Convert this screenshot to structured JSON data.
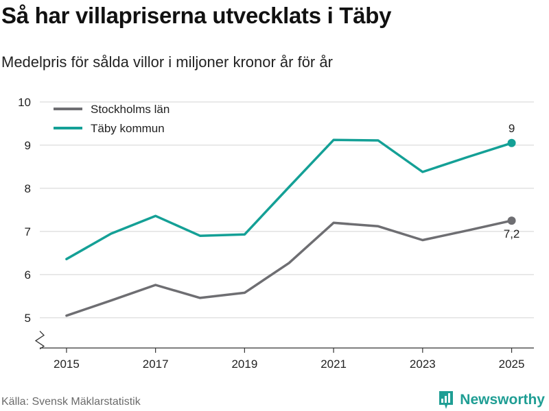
{
  "title": "Så har villapriserna utvecklats i Täby",
  "subtitle": "Medelpris för sålda villor i miljoner kronor år för år",
  "source": "Källa: Svensk Mäklarstatistik",
  "brand": "Newsworthy",
  "colors": {
    "stockholm": "#6e6e72",
    "taby": "#14a096",
    "grid": "#dcdcdc",
    "axis": "#333333",
    "brand": "#1f9e94"
  },
  "chart_data": {
    "type": "line",
    "title": "Så har villapriserna utvecklats i Täby",
    "xlabel": "",
    "ylabel": "",
    "x": [
      2015,
      2016,
      2017,
      2018,
      2019,
      2020,
      2021,
      2022,
      2023,
      2024,
      2025
    ],
    "xticks": [
      2015,
      2017,
      2019,
      2021,
      2023,
      2025
    ],
    "xtick_labels": [
      "2015",
      "2017",
      "2019",
      "2021",
      "2023",
      "2025"
    ],
    "yticks": [
      5,
      6,
      7,
      8,
      9,
      10
    ],
    "ytick_labels": [
      "5",
      "6",
      "7",
      "8",
      "9",
      "10"
    ],
    "ylim": [
      4.3,
      10.3
    ],
    "xlim": [
      2014.4,
      2025.5
    ],
    "axis_break": true,
    "legend_position": "top-left",
    "series": [
      {
        "key": "stockholm",
        "name": "Stockholms län",
        "values": [
          5.05,
          5.4,
          5.76,
          5.46,
          5.58,
          6.27,
          7.2,
          7.12,
          6.8,
          7.02,
          7.25
        ],
        "end_label": "7,2",
        "end_label_position": "below"
      },
      {
        "key": "taby",
        "name": "Täby kommun",
        "values": [
          6.36,
          6.95,
          7.36,
          6.9,
          6.93,
          8.03,
          9.12,
          9.11,
          8.38,
          8.72,
          9.05
        ],
        "end_label": "9",
        "end_label_position": "above"
      }
    ]
  }
}
